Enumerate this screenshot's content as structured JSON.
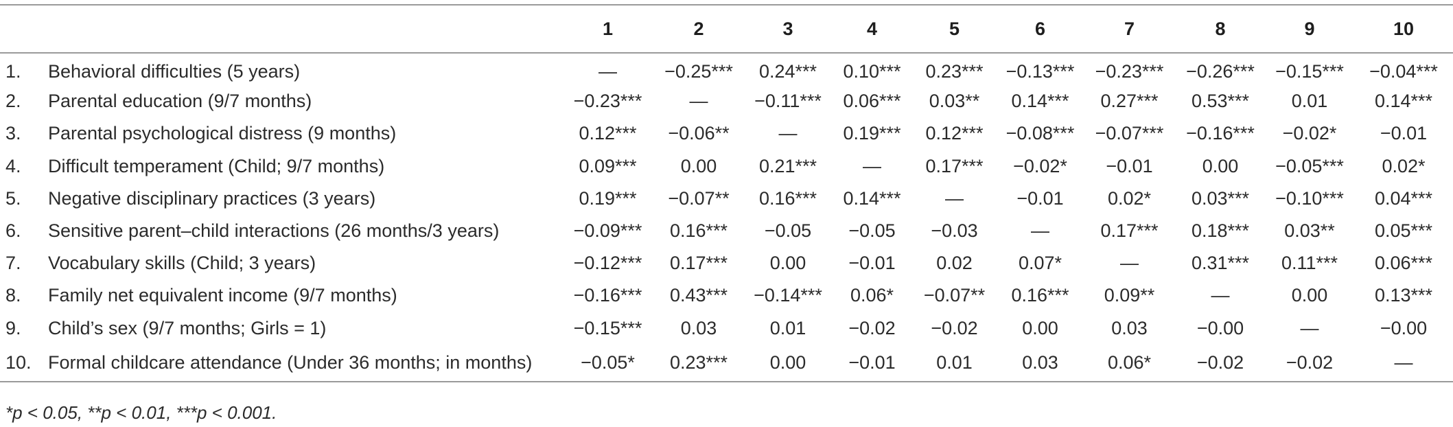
{
  "table": {
    "columns": [
      "1",
      "2",
      "3",
      "4",
      "5",
      "6",
      "7",
      "8",
      "9",
      "10"
    ],
    "rows": [
      {
        "num": "1.",
        "label": "Behavioral difficulties (5 years)",
        "cells": [
          "—",
          "−0.25***",
          "0.24***",
          "0.10***",
          "0.23***",
          "−0.13***",
          "−0.23***",
          "−0.26***",
          "−0.15***",
          "−0.04***"
        ]
      },
      {
        "num": "2.",
        "label": "Parental education (9/7 months)",
        "cells": [
          "−0.23***",
          "—",
          "−0.11***",
          "0.06***",
          "0.03**",
          "0.14***",
          "0.27***",
          "0.53***",
          "0.01",
          "0.14***"
        ]
      },
      {
        "num": "3.",
        "label": "Parental psychological distress (9 months)",
        "cells": [
          "0.12***",
          "−0.06**",
          "—",
          "0.19***",
          "0.12***",
          "−0.08***",
          "−0.07***",
          "−0.16***",
          "−0.02*",
          "−0.01"
        ]
      },
      {
        "num": "4.",
        "label": "Difficult temperament (Child; 9/7 months)",
        "cells": [
          "0.09***",
          "0.00",
          "0.21***",
          "—",
          "0.17***",
          "−0.02*",
          "−0.01",
          "0.00",
          "−0.05***",
          "0.02*"
        ]
      },
      {
        "num": "5.",
        "label": "Negative disciplinary practices (3 years)",
        "cells": [
          "0.19***",
          "−0.07**",
          "0.16***",
          "0.14***",
          "—",
          "−0.01",
          "0.02*",
          "0.03***",
          "−0.10***",
          "0.04***"
        ]
      },
      {
        "num": "6.",
        "label": "Sensitive parent–child interactions (26 months/3 years)",
        "cells": [
          "−0.09***",
          "0.16***",
          "−0.05",
          "−0.05",
          "−0.03",
          "—",
          "0.17***",
          "0.18***",
          "0.03**",
          "0.05***"
        ]
      },
      {
        "num": "7.",
        "label": "Vocabulary skills (Child; 3 years)",
        "cells": [
          "−0.12***",
          "0.17***",
          "0.00",
          "−0.01",
          "0.02",
          "0.07*",
          "—",
          "0.31***",
          "0.11***",
          "0.06***"
        ]
      },
      {
        "num": "8.",
        "label": "Family net equivalent income (9/7 months)",
        "cells": [
          "−0.16***",
          "0.43***",
          "−0.14***",
          "0.06*",
          "−0.07**",
          "0.16***",
          "0.09**",
          "—",
          "0.00",
          "0.13***"
        ]
      },
      {
        "num": "9.",
        "label": "Child’s sex (9/7 months; Girls = 1)",
        "cells": [
          "−0.15***",
          "0.03",
          "0.01",
          "−0.02",
          "−0.02",
          "0.00",
          "0.03",
          "−0.00",
          "—",
          "−0.00"
        ]
      },
      {
        "num": "10.",
        "label": "Formal childcare attendance (Under 36 months; in months)",
        "cells": [
          "−0.05*",
          "0.23***",
          "0.00",
          "−0.01",
          "0.01",
          "0.03",
          "0.06*",
          "−0.02",
          "−0.02",
          "—"
        ]
      }
    ]
  },
  "footnote": "*p < 0.05, **p < 0.01, ***p < 0.001."
}
